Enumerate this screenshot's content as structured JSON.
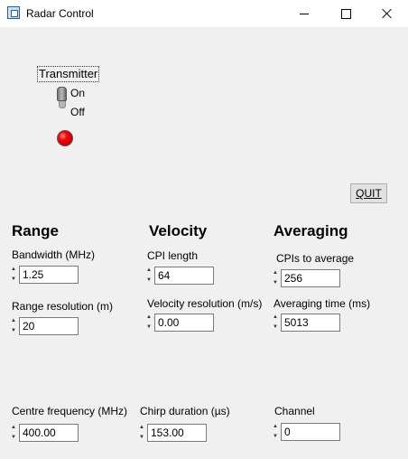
{
  "window": {
    "title": "Radar Control"
  },
  "transmitter": {
    "label": "Transmitter",
    "on_label": "On",
    "off_label": "Off",
    "state": "Off",
    "indicator_color": "#ff0000"
  },
  "quit_label": "QUIT",
  "range": {
    "heading": "Range",
    "bandwidth": {
      "label": "Bandwidth (MHz)",
      "value": "1.25"
    },
    "resolution": {
      "label": "Range resolution (m)",
      "value": "20"
    },
    "centre_frequency": {
      "label": "Centre frequency (MHz)",
      "value": "400.00"
    }
  },
  "velocity": {
    "heading": "Velocity",
    "cpi_length": {
      "label": "CPI length",
      "value": "64"
    },
    "resolution": {
      "label": "Velocity resolution (m/s)",
      "value": "0.00"
    },
    "chirp_duration": {
      "label": "Chirp duration (µs)",
      "value": "153.00"
    }
  },
  "averaging": {
    "heading": "Averaging",
    "cpis": {
      "label": "CPIs to average",
      "value": "256"
    },
    "time": {
      "label": "Averaging time (ms)",
      "value": "5013"
    },
    "channel": {
      "label": "Channel",
      "value": "0"
    }
  }
}
